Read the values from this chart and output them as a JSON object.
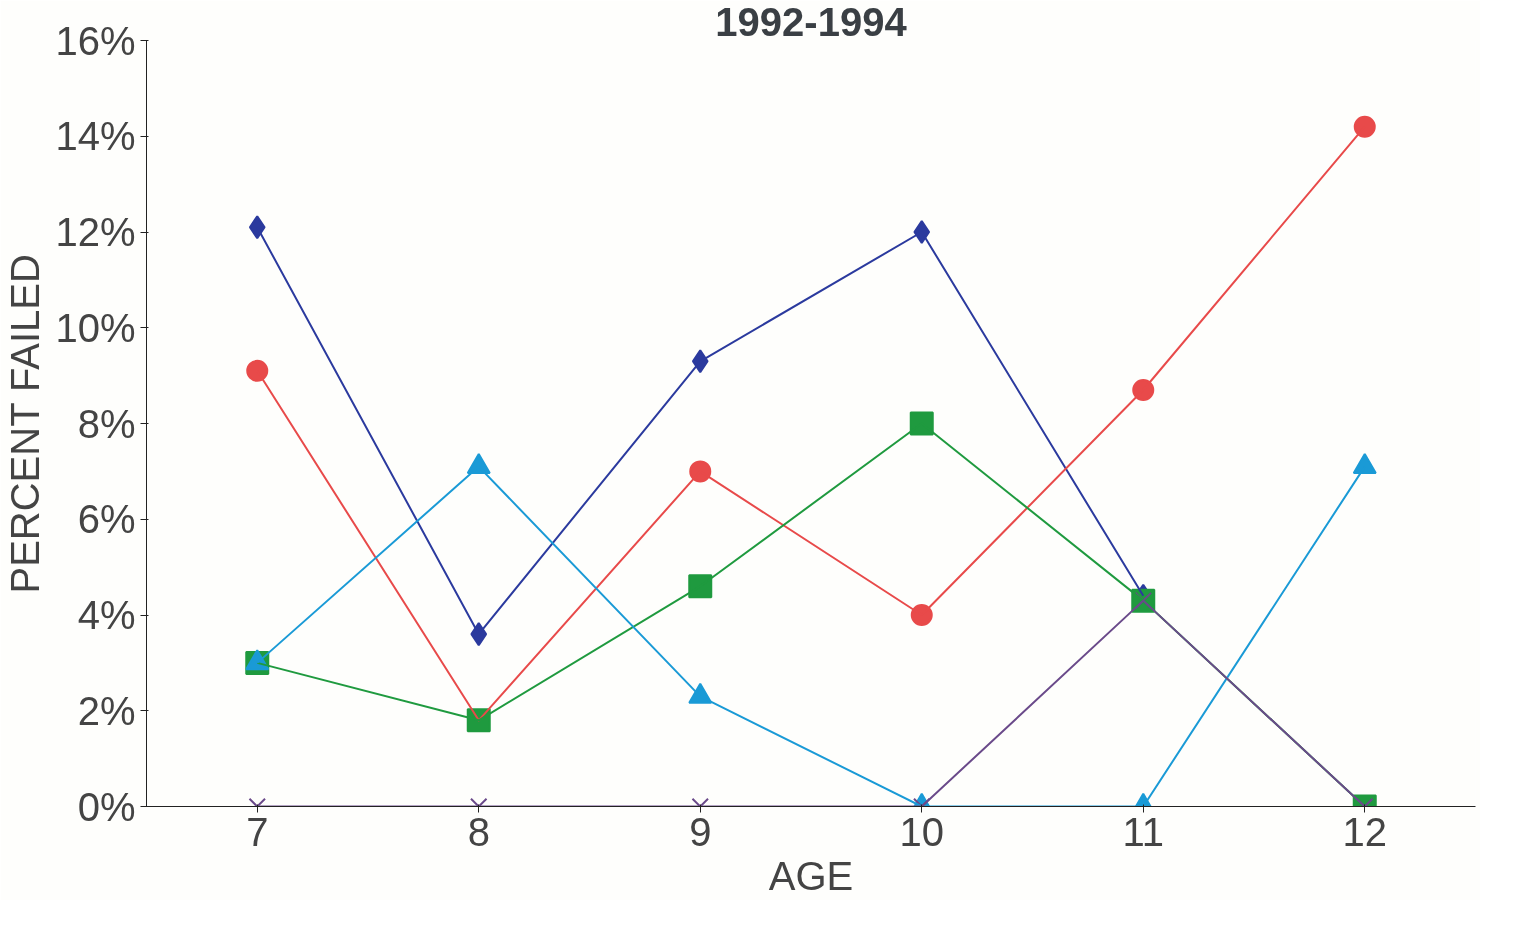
{
  "chart_data": {
    "type": "line",
    "title": "1992-1994",
    "xlabel": "AGE",
    "ylabel": "PERCENT FAILED",
    "x": [
      7,
      8,
      9,
      10,
      11,
      12
    ],
    "series": [
      {
        "color": "#2b3a9e",
        "marker": "diamond",
        "values": [
          12.1,
          3.6,
          9.3,
          12.0,
          4.4,
          null
        ]
      },
      {
        "color": "#e84a4a",
        "marker": "circle",
        "values": [
          9.1,
          1.8,
          7.0,
          4.0,
          8.7,
          14.2
        ]
      },
      {
        "color": "#1f9a3f",
        "marker": "square",
        "values": [
          3.0,
          1.8,
          4.6,
          8.0,
          4.3,
          0
        ]
      },
      {
        "color": "#1a9ad6",
        "marker": "triangle",
        "values": [
          3.0,
          7.1,
          2.3,
          0,
          0,
          7.1
        ]
      },
      {
        "color": "#6a4a8a",
        "marker": "cross",
        "values": [
          0,
          0,
          0,
          0,
          4.3,
          0
        ]
      }
    ],
    "xlim": [
      6.5,
      12.5
    ],
    "ylim": [
      0,
      16
    ],
    "xticks": [
      7,
      8,
      9,
      10,
      11,
      12
    ],
    "yticks": [
      {
        "value": 0,
        "label": "0%"
      },
      {
        "value": 2,
        "label": "2%"
      },
      {
        "value": 4,
        "label": "4%"
      },
      {
        "value": 6,
        "label": "6%"
      },
      {
        "value": 8,
        "label": "8%"
      },
      {
        "value": 10,
        "label": "10%"
      },
      {
        "value": 12,
        "label": "12%"
      },
      {
        "value": 14,
        "label": "14%"
      },
      {
        "value": 16,
        "label": "16%"
      }
    ],
    "grid": false,
    "line_style": "solid"
  }
}
